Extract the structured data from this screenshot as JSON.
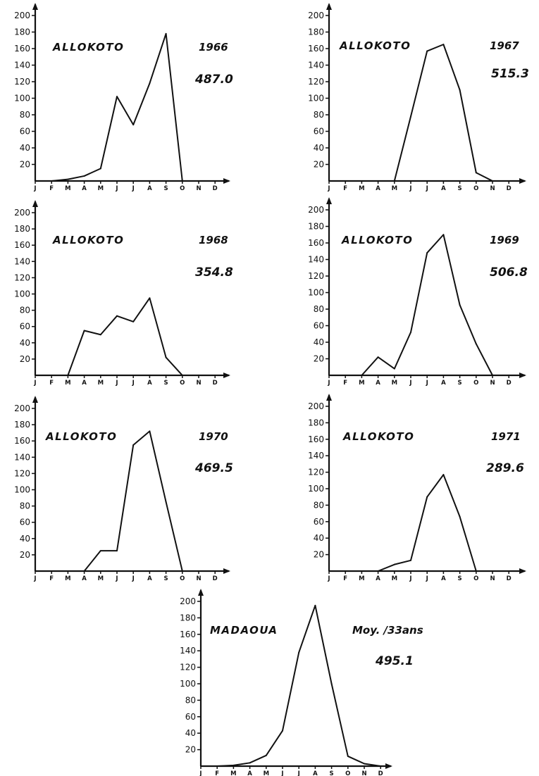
{
  "chart_data": [
    {
      "type": "line",
      "station": "ALLOKOTO",
      "year": "1966",
      "total": "487.0",
      "categories": [
        "J",
        "F",
        "M",
        "A",
        "M",
        "J",
        "J",
        "A",
        "S",
        "O",
        "N",
        "D"
      ],
      "y_tick_labels": [
        "20",
        "40",
        "60",
        "80",
        "100",
        "120",
        "140",
        "160",
        "180",
        "200"
      ],
      "ylim": [
        0,
        200
      ],
      "values": [
        0,
        0,
        2,
        6,
        15,
        102,
        68,
        118,
        178,
        0,
        0,
        0
      ]
    },
    {
      "type": "line",
      "station": "ALLOKOTO",
      "year": "1967",
      "total": "515.3",
      "categories": [
        "J",
        "F",
        "M",
        "A",
        "M",
        "J",
        "J",
        "A",
        "S",
        "O",
        "N",
        "D"
      ],
      "y_tick_labels": [
        "20",
        "40",
        "60",
        "80",
        "100",
        "120",
        "140",
        "160",
        "180",
        "200"
      ],
      "ylim": [
        0,
        200
      ],
      "values": [
        0,
        0,
        0,
        0,
        0,
        78,
        157,
        165,
        110,
        10,
        0,
        0
      ]
    },
    {
      "type": "line",
      "station": "ALLOKOTO",
      "year": "1968",
      "total": "354.8",
      "categories": [
        "J",
        "F",
        "M",
        "A",
        "M",
        "J",
        "J",
        "A",
        "S",
        "O",
        "N",
        "D"
      ],
      "y_tick_labels": [
        "20",
        "40",
        "60",
        "80",
        "100",
        "120",
        "140",
        "160",
        "180",
        "200"
      ],
      "ylim": [
        0,
        200
      ],
      "values": [
        0,
        0,
        0,
        55,
        50,
        73,
        66,
        95,
        22,
        0,
        0,
        0
      ]
    },
    {
      "type": "line",
      "station": "ALLOKOTO",
      "year": "1969",
      "total": "506.8",
      "categories": [
        "J",
        "F",
        "M",
        "A",
        "M",
        "J",
        "J",
        "A",
        "S",
        "O",
        "N",
        "D"
      ],
      "y_tick_labels": [
        "20",
        "40",
        "60",
        "80",
        "100",
        "120",
        "140",
        "160",
        "180",
        "200"
      ],
      "ylim": [
        0,
        200
      ],
      "values": [
        0,
        0,
        0,
        22,
        8,
        52,
        148,
        170,
        85,
        38,
        0,
        0
      ]
    },
    {
      "type": "line",
      "station": "ALLOKOTO",
      "year": "1970",
      "total": "469.5",
      "categories": [
        "J",
        "F",
        "M",
        "A",
        "M",
        "J",
        "J",
        "A",
        "S",
        "O",
        "N",
        "D"
      ],
      "y_tick_labels": [
        "20",
        "40",
        "60",
        "80",
        "100",
        "120",
        "140",
        "160",
        "180",
        "200"
      ],
      "ylim": [
        0,
        200
      ],
      "values": [
        0,
        0,
        0,
        0,
        25,
        25,
        155,
        172,
        85,
        0,
        0,
        0
      ]
    },
    {
      "type": "line",
      "station": "ALLOKOTO",
      "year": "1971",
      "total": "289.6",
      "categories": [
        "J",
        "F",
        "M",
        "A",
        "M",
        "J",
        "J",
        "A",
        "S",
        "O",
        "N",
        "D"
      ],
      "y_tick_labels": [
        "20",
        "40",
        "60",
        "80",
        "100",
        "120",
        "140",
        "160",
        "180",
        "200"
      ],
      "ylim": [
        0,
        200
      ],
      "values": [
        0,
        0,
        0,
        0,
        8,
        13,
        90,
        117,
        66,
        0,
        0,
        0
      ]
    },
    {
      "type": "line",
      "station": "MADAOUA",
      "year": "Moy. /33ans",
      "total": "495.1",
      "categories": [
        "J",
        "F",
        "M",
        "A",
        "M",
        "J",
        "J",
        "A",
        "S",
        "O",
        "N",
        "D"
      ],
      "y_tick_labels": [
        "20",
        "40",
        "60",
        "80",
        "100",
        "120",
        "140",
        "160",
        "180",
        "200"
      ],
      "ylim": [
        0,
        200
      ],
      "values": [
        0,
        0,
        1,
        4,
        13,
        43,
        138,
        195,
        100,
        12,
        3,
        0
      ]
    }
  ]
}
